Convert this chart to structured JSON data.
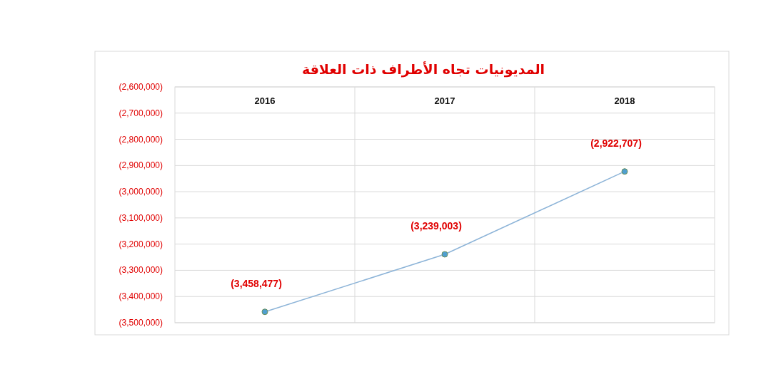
{
  "chart_data": {
    "type": "line",
    "title": "المديونيات تجاه الأطراف ذات العلاقة",
    "categories": [
      "2016",
      "2017",
      "2018"
    ],
    "series": [
      {
        "color": "#8db4d8",
        "values": [
          -3458477,
          -3239003,
          -2922707
        ],
        "value_labels": [
          "(3,458,477)",
          "(3,239,003)",
          "(2,922,707)"
        ]
      }
    ],
    "ylim": [
      -3500000,
      -2600000
    ],
    "yticks": [
      {
        "value": -2600000,
        "label": "(2,600,000)"
      },
      {
        "value": -2700000,
        "label": "(2,700,000)"
      },
      {
        "value": -2800000,
        "label": "(2,800,000)"
      },
      {
        "value": -2900000,
        "label": "(2,900,000)"
      },
      {
        "value": -3000000,
        "label": "(3,000,000)"
      },
      {
        "value": -3100000,
        "label": "(3,100,000)"
      },
      {
        "value": -3200000,
        "label": "(3,200,000)"
      },
      {
        "value": -3300000,
        "label": "(3,300,000)"
      },
      {
        "value": -3400000,
        "label": "(3,400,000)"
      },
      {
        "value": -3500000,
        "label": "(3,500,000)"
      }
    ],
    "grid": true,
    "marker": "circle"
  }
}
